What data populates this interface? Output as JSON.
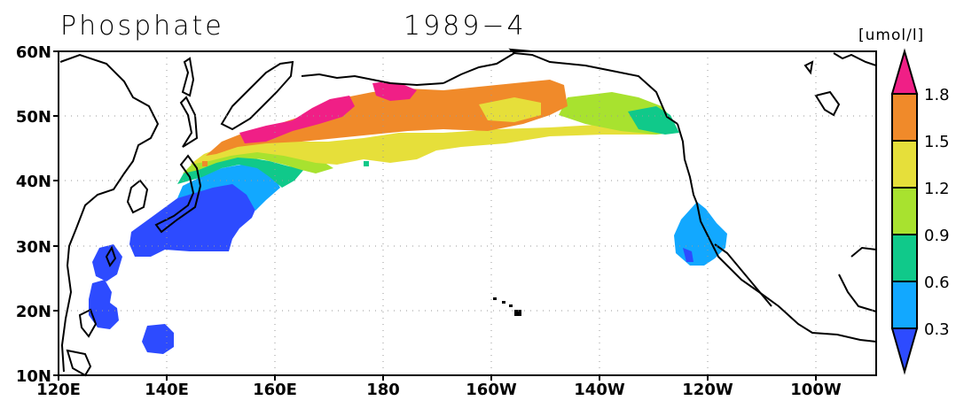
{
  "title": {
    "variable": "Phosphate",
    "date": "1989-4"
  },
  "units": "[umol/l]",
  "axes": {
    "lon_ticks": [
      "120E",
      "140E",
      "160E",
      "180",
      "160W",
      "140W",
      "120W",
      "100W"
    ],
    "lat_ticks": [
      "60N",
      "50N",
      "40N",
      "30N",
      "20N",
      "10N"
    ]
  },
  "colorbar": {
    "levels": [
      "0.3",
      "0.6",
      "0.9",
      "1.2",
      "1.5",
      "1.8"
    ],
    "colors": [
      "#2d4bff",
      "#12a8ff",
      "#10c98a",
      "#a8e22f",
      "#e6df3a",
      "#f08a2a",
      "#f01f86"
    ]
  },
  "chart_data": {
    "type": "heatmap",
    "title": "Phosphate 1989-4",
    "variable": "Phosphate",
    "units": "umol/l",
    "lon_range": [
      "120E",
      "90W"
    ],
    "lat_range": [
      "10N",
      "60N"
    ],
    "levels": [
      0.3,
      0.6,
      0.9,
      1.2,
      1.5,
      1.8
    ],
    "grid": true,
    "regions": [
      {
        "area": "Subarctic North Pacific 45-55N, 160E-150W",
        "class": ">1.5"
      },
      {
        "area": "Western Bering / Kuril margin ~50-53N, 160-170E",
        "class": ">1.8"
      },
      {
        "area": "Gulf of Alaska 47-54N, 150-130W",
        "class": "0.9-1.5"
      },
      {
        "area": "Kuroshio extension 38-45N, 140-160E",
        "class": "0.3-1.2"
      },
      {
        "area": "Western subtropics 25-38N, 133-155E",
        "class": "<0.3"
      },
      {
        "area": "Philippine Sea 17-30N, 125-130E",
        "class": "<0.3"
      },
      {
        "area": "California Current 27-35N, 118-126W",
        "class": "0.3-0.6"
      }
    ]
  }
}
